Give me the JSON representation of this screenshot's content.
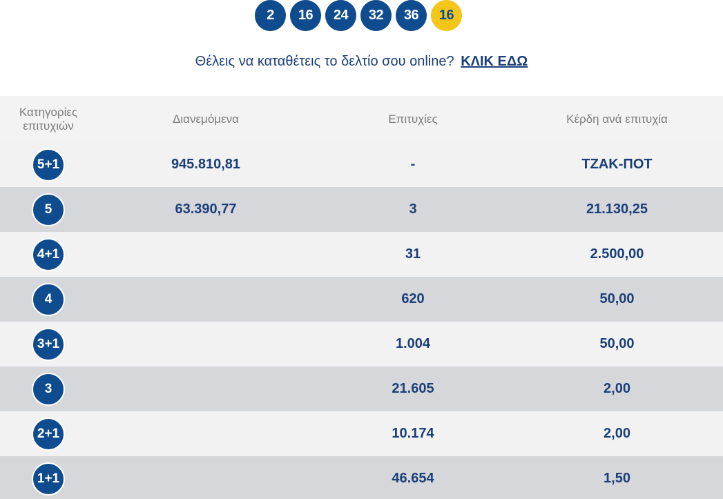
{
  "draw": {
    "numbers": [
      "2",
      "16",
      "24",
      "32",
      "36"
    ],
    "bonus": "16"
  },
  "cta": {
    "text": "Θέλεις να καταθέτεις το δελτίο σου online?",
    "link_label": "ΚΛΙΚ ΕΔΩ"
  },
  "table": {
    "headers": {
      "category": "Κατηγορίες επιτυχιών",
      "distributed": "Διανεμόμενα",
      "winners": "Επιτυχίες",
      "prize": "Κέρδη ανά επιτυχία"
    },
    "rows": [
      {
        "category": "5+1",
        "distributed": "945.810,81",
        "winners": "-",
        "prize": "ΤΖΑΚ-ΠΟΤ"
      },
      {
        "category": "5",
        "distributed": "63.390,77",
        "winners": "3",
        "prize": "21.130,25"
      },
      {
        "category": "4+1",
        "distributed": "",
        "winners": "31",
        "prize": "2.500,00"
      },
      {
        "category": "4",
        "distributed": "",
        "winners": "620",
        "prize": "50,00"
      },
      {
        "category": "3+1",
        "distributed": "",
        "winners": "1.004",
        "prize": "50,00"
      },
      {
        "category": "3",
        "distributed": "",
        "winners": "21.605",
        "prize": "2,00"
      },
      {
        "category": "2+1",
        "distributed": "",
        "winners": "10.174",
        "prize": "2,00"
      },
      {
        "category": "1+1",
        "distributed": "",
        "winners": "46.654",
        "prize": "1,50"
      }
    ]
  },
  "colors": {
    "primary_blue": "#0f4c8f",
    "text_blue": "#1b3f78",
    "bonus_yellow": "#f5c61a",
    "row_light": "#f2f2f2",
    "row_dark": "#d6d7db"
  }
}
